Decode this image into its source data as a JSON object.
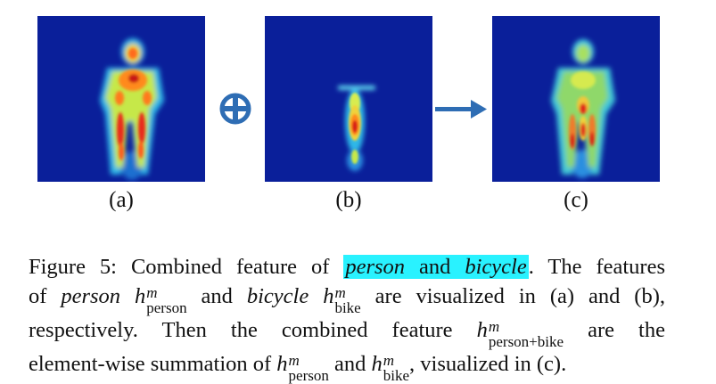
{
  "figure": {
    "panels": [
      {
        "id": "a",
        "label": "(a)"
      },
      {
        "id": "b",
        "label": "(b)"
      },
      {
        "id": "c",
        "label": "(c)"
      }
    ],
    "operators": [
      "plus-circle-icon",
      "right-arrow-icon"
    ]
  },
  "caption": {
    "figure_label": "Figure 5:",
    "t1": " Combined feature of ",
    "highlight_person": "person",
    "highlight_and": " and ",
    "highlight_bicycle": "bicycle",
    "t2": ". The features",
    "t3": "of ",
    "person": "person",
    "h": "h",
    "sup_m": "m",
    "sub_person": "person",
    "t4": " and ",
    "bicycle": "bicycle",
    "sub_bike": "bike",
    "t5": " are visualized in (a) and (b),",
    "t6": "respectively.  Then the combined feature ",
    "sub_person_bike": "person+bike",
    "t7": " are the",
    "t8": "element-wise summation of ",
    "t9": " and ",
    "t10": ", visualized in (c)."
  },
  "colors": {
    "heatmap_background": "#0a1f9a",
    "highlight": "#29f2ff",
    "operator_blue": "#2e6db4"
  }
}
